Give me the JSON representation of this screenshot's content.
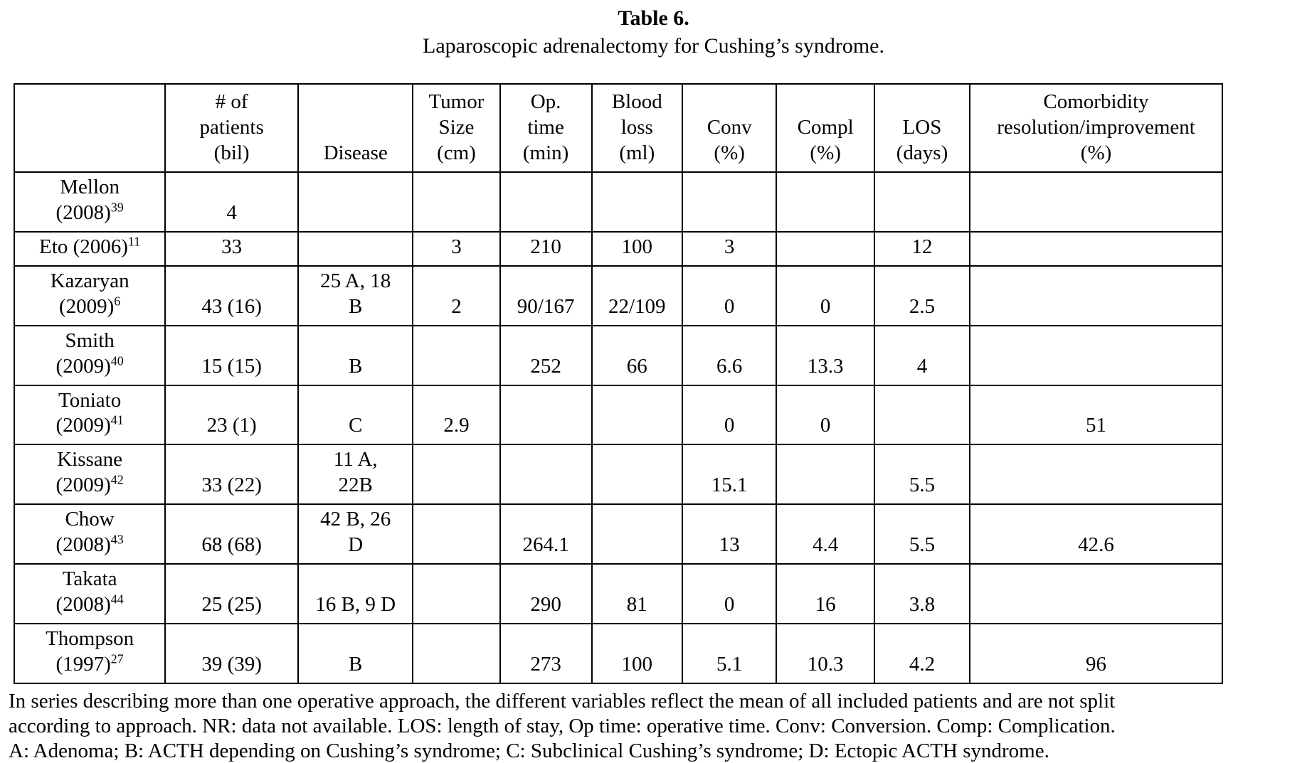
{
  "title": "Table 6.",
  "subtitle": "Laparoscopic adrenalectomy for Cushing’s syndrome.",
  "table": {
    "columns": [
      {
        "key": "study",
        "label": ""
      },
      {
        "key": "patients",
        "label": "# of\npatients\n(bil)"
      },
      {
        "key": "disease",
        "label": "Disease"
      },
      {
        "key": "tumor",
        "label": "Tumor\nSize\n(cm)"
      },
      {
        "key": "optime",
        "label": "Op.\ntime\n(min)"
      },
      {
        "key": "blood",
        "label": "Blood\nloss\n(ml)"
      },
      {
        "key": "conv",
        "label": "Conv\n(%)"
      },
      {
        "key": "compl",
        "label": "Compl\n(%)"
      },
      {
        "key": "los",
        "label": "LOS\n(days)"
      },
      {
        "key": "comorbidity",
        "label": "Comorbidity\nresolution/improvement\n(%)"
      }
    ],
    "rows": [
      {
        "study": "Mellon\n(2008)",
        "ref": "39",
        "patients": "4",
        "disease": "",
        "tumor": "",
        "optime": "",
        "blood": "",
        "conv": "",
        "compl": "",
        "los": "",
        "comorbidity": ""
      },
      {
        "study": "Eto (2006)",
        "ref": "11",
        "patients": "33",
        "disease": "",
        "tumor": "3",
        "optime": "210",
        "blood": "100",
        "conv": "3",
        "compl": "",
        "los": "12",
        "comorbidity": ""
      },
      {
        "study": "Kazaryan\n(2009)",
        "ref": "6",
        "patients": "43 (16)",
        "disease": "25 A, 18\nB",
        "tumor": "2",
        "optime": "90/167",
        "blood": "22/109",
        "conv": "0",
        "compl": "0",
        "los": "2.5",
        "comorbidity": ""
      },
      {
        "study": "Smith\n(2009)",
        "ref": "40",
        "patients": "15 (15)",
        "disease": "B",
        "tumor": "",
        "optime": "252",
        "blood": "66",
        "conv": "6.6",
        "compl": "13.3",
        "los": "4",
        "comorbidity": ""
      },
      {
        "study": "Toniato\n(2009)",
        "ref": "41",
        "patients": "23 (1)",
        "disease": "C",
        "tumor": "2.9",
        "optime": "",
        "blood": "",
        "conv": "0",
        "compl": "0",
        "los": "",
        "comorbidity": "51"
      },
      {
        "study": "Kissane\n(2009)",
        "ref": "42",
        "patients": "33 (22)",
        "disease": "11 A,\n22B",
        "tumor": "",
        "optime": "",
        "blood": "",
        "conv": "15.1",
        "compl": "",
        "los": "5.5",
        "comorbidity": ""
      },
      {
        "study": "Chow\n(2008)",
        "ref": "43",
        "patients": "68 (68)",
        "disease": "42 B, 26\nD",
        "tumor": "",
        "optime": "264.1",
        "blood": "",
        "conv": "13",
        "compl": "4.4",
        "los": "5.5",
        "comorbidity": "42.6"
      },
      {
        "study": "Takata\n(2008)",
        "ref": "44",
        "patients": "25 (25)",
        "disease": "16 B, 9 D",
        "tumor": "",
        "optime": "290",
        "blood": "81",
        "conv": "0",
        "compl": "16",
        "los": "3.8",
        "comorbidity": ""
      },
      {
        "study": "Thompson\n(1997)",
        "ref": "27",
        "patients": "39 (39)",
        "disease": "B",
        "tumor": "",
        "optime": "273",
        "blood": "100",
        "conv": "5.1",
        "compl": "10.3",
        "los": "4.2",
        "comorbidity": "96"
      }
    ]
  },
  "footnote": {
    "lines": [
      "In series describing more than one operative approach, the different variables reflect the mean of all included patients and are not split",
      "according to approach. NR: data not available. LOS: length of stay, Op time: operative time. Conv: Conversion. Comp: Complication.",
      "A: Adenoma; B: ACTH depending on Cushing’s syndrome; C: Subclinical Cushing’s syndrome; D: Ectopic ACTH syndrome."
    ]
  },
  "colors": {
    "text": "#000000",
    "background": "#ffffff",
    "border": "#000000"
  }
}
